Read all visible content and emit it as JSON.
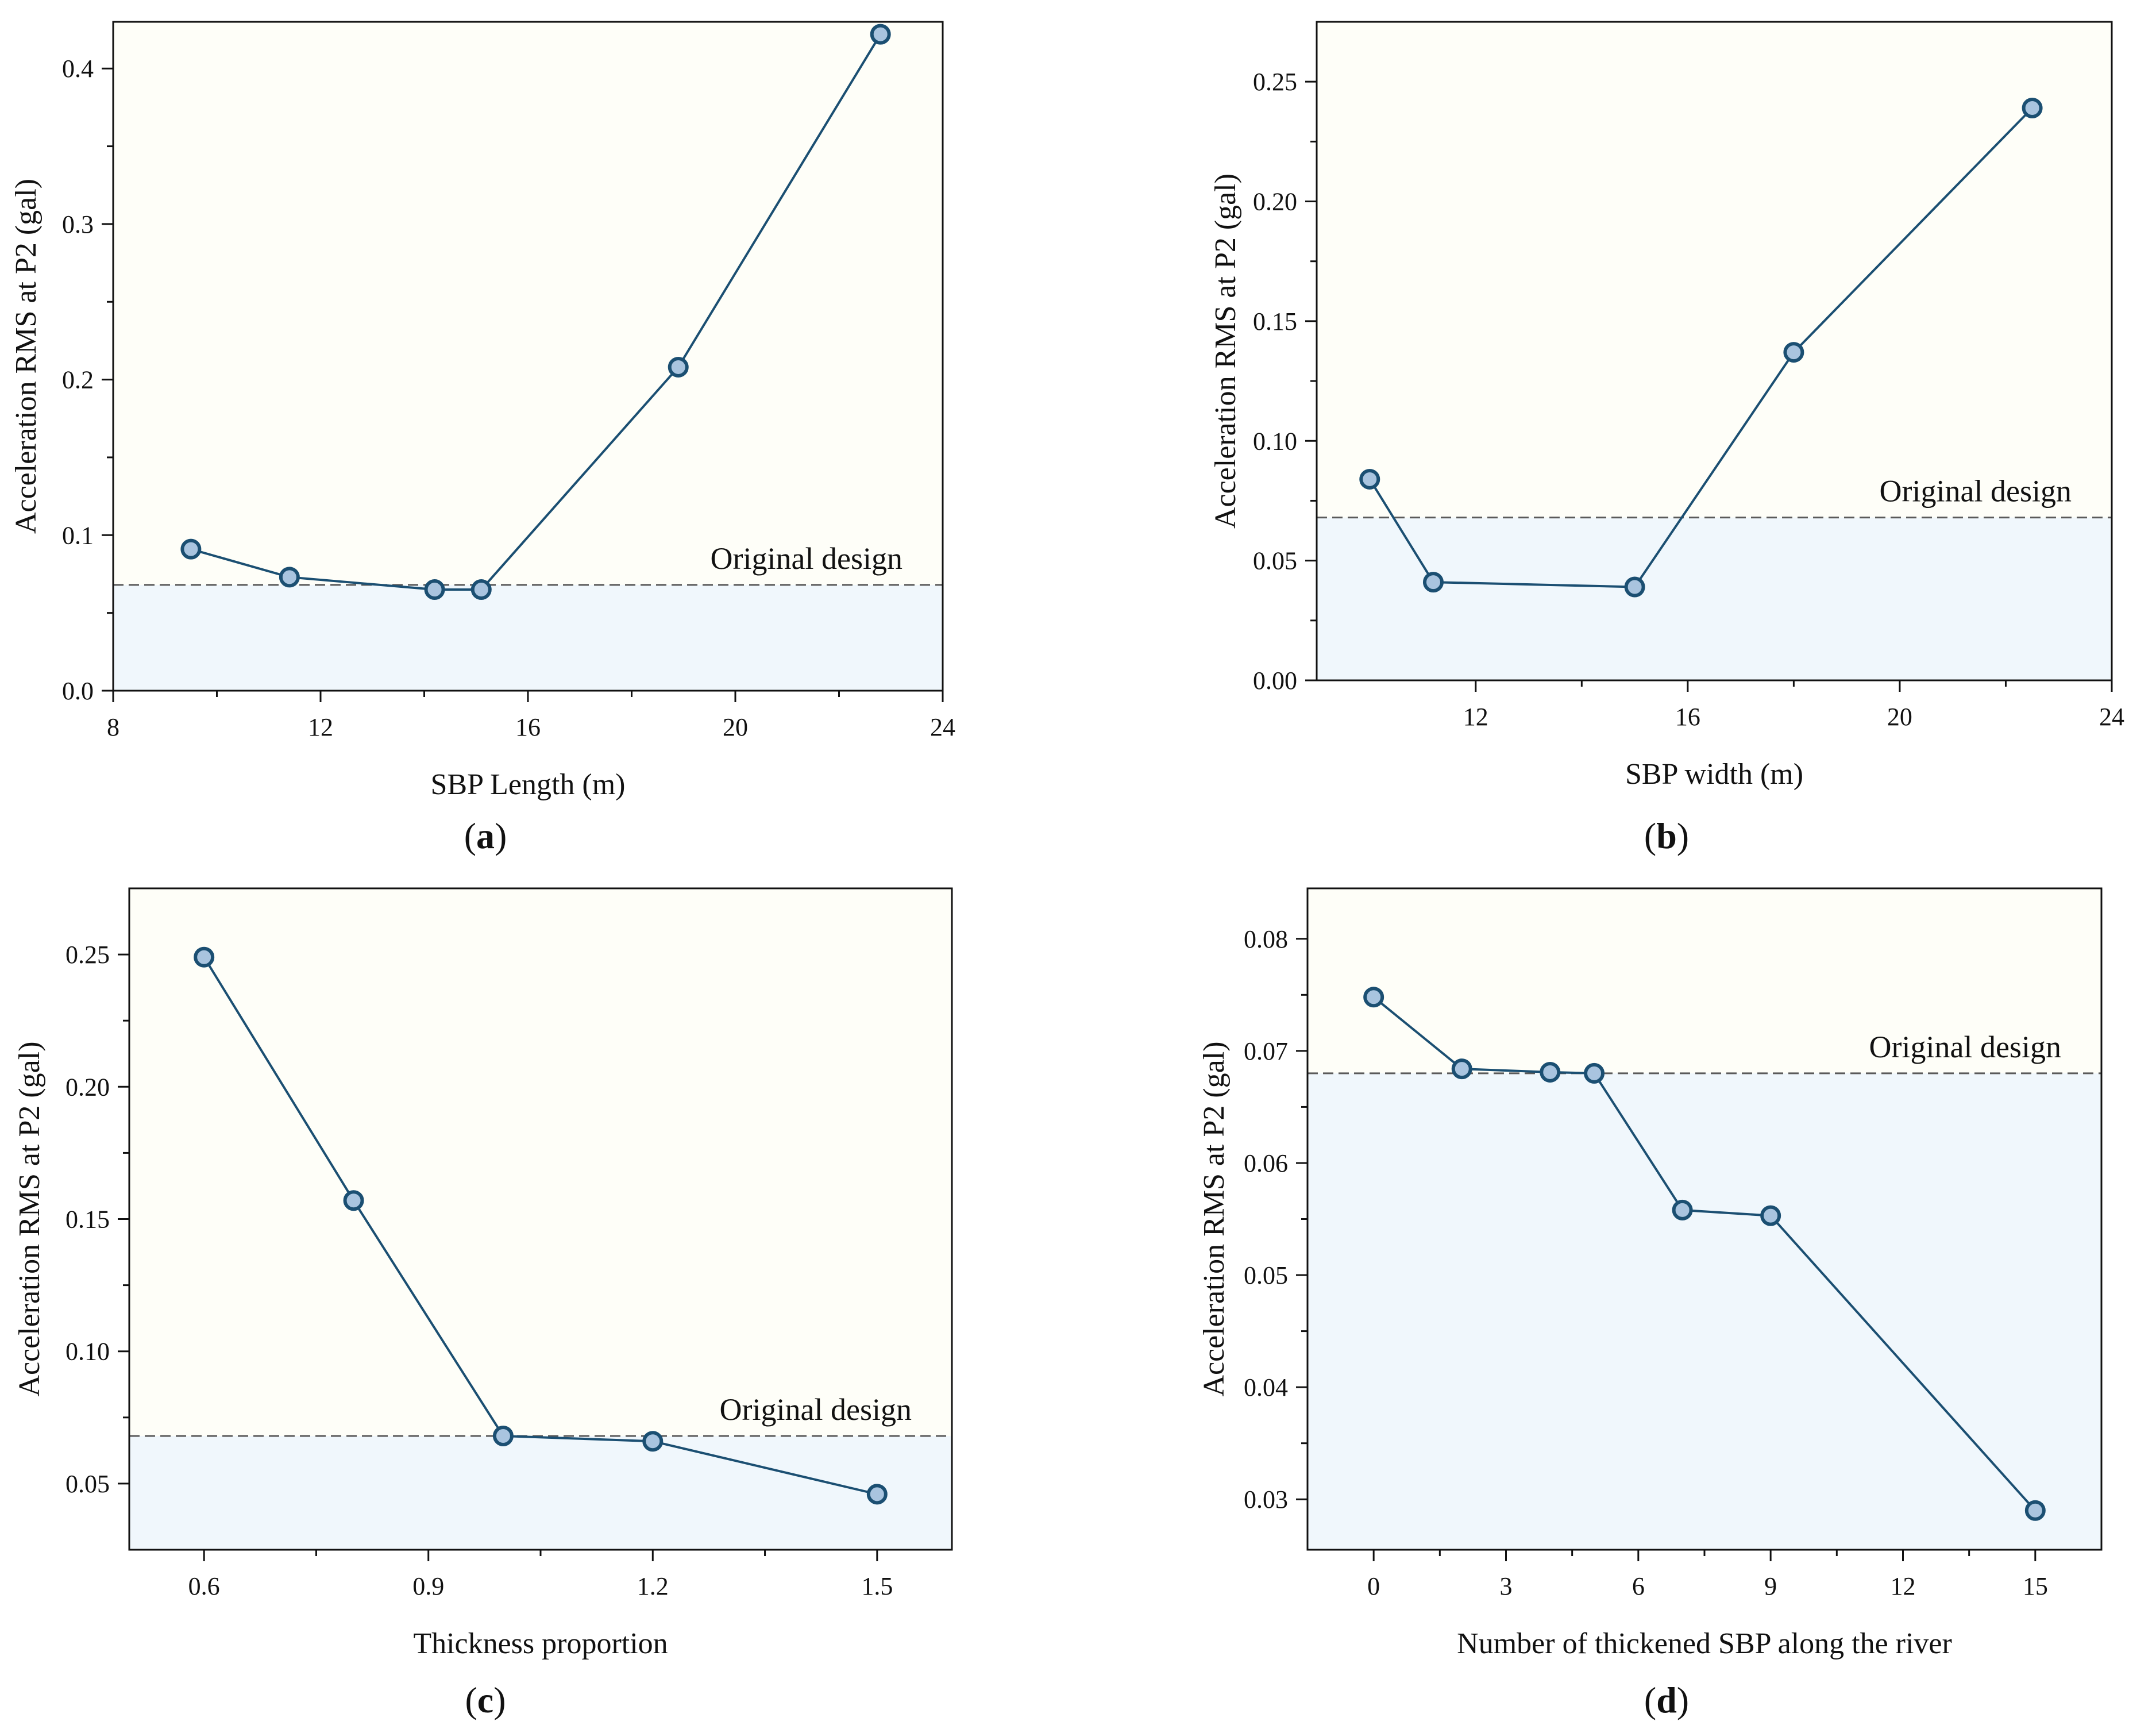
{
  "chart_data": [
    {
      "type": "line",
      "panel_label": "a",
      "xlabel": "SBP Length (m)",
      "ylabel": "Acceleration RMS at P2 (gal)",
      "xlim": [
        8,
        24
      ],
      "ylim": [
        0,
        0.43
      ],
      "xticks": [
        8,
        12,
        16,
        20,
        24
      ],
      "yticks": [
        0.0,
        0.1,
        0.2,
        0.3,
        0.4
      ],
      "ytick_labels": [
        "0.0",
        "0.1",
        "0.2",
        "0.3",
        "0.4"
      ],
      "yminor": [
        0.05,
        0.15,
        0.25,
        0.35
      ],
      "x": [
        9.5,
        11.4,
        14.2,
        15.1,
        18.9,
        22.8
      ],
      "y": [
        0.091,
        0.073,
        0.065,
        0.065,
        0.208,
        0.422
      ],
      "reference": {
        "value": 0.068,
        "label": "Original design"
      },
      "grid": false,
      "line_color": "#1b4f72",
      "marker_fill": "#a9c4df",
      "below_fill": "#f0f7fc",
      "above_fill": "#fefef8"
    },
    {
      "type": "line",
      "panel_label": "b",
      "xlabel": "SBP width (m)",
      "ylabel": "Acceleration RMS at P2 (gal)",
      "xlim": [
        9,
        24
      ],
      "ylim": [
        0,
        0.275
      ],
      "xticks": [
        12,
        16,
        20,
        24
      ],
      "yticks": [
        0.0,
        0.05,
        0.1,
        0.15,
        0.2,
        0.25
      ],
      "ytick_labels": [
        "0.00",
        "0.05",
        "0.10",
        "0.15",
        "0.20",
        "0.25"
      ],
      "yminor": [
        0.025,
        0.075,
        0.125,
        0.175,
        0.225
      ],
      "x": [
        10.0,
        11.2,
        15.0,
        18.0,
        22.5
      ],
      "y": [
        0.084,
        0.041,
        0.039,
        0.137,
        0.239
      ],
      "reference": {
        "value": 0.068,
        "label": "Original design"
      },
      "grid": false,
      "line_color": "#1b4f72",
      "marker_fill": "#a9c4df",
      "below_fill": "#f0f7fc",
      "above_fill": "#fefef8"
    },
    {
      "type": "line",
      "panel_label": "c",
      "xlabel": "Thickness proportion",
      "ylabel": "Acceleration RMS at P2 (gal)",
      "xlim": [
        0.5,
        1.6
      ],
      "ylim": [
        0.025,
        0.275
      ],
      "xticks": [
        0.6,
        0.9,
        1.2,
        1.5
      ],
      "yticks": [
        0.05,
        0.1,
        0.15,
        0.2,
        0.25
      ],
      "ytick_labels": [
        "0.05",
        "0.10",
        "0.15",
        "0.20",
        "0.25"
      ],
      "yminor": [
        0.075,
        0.125,
        0.175,
        0.225
      ],
      "x": [
        0.6,
        0.8,
        1.0,
        1.2,
        1.5
      ],
      "y": [
        0.249,
        0.157,
        0.068,
        0.066,
        0.046
      ],
      "reference": {
        "value": 0.068,
        "label": "Original design"
      },
      "grid": false,
      "line_color": "#1b4f72",
      "marker_fill": "#a9c4df",
      "below_fill": "#f0f7fc",
      "above_fill": "#fefef8"
    },
    {
      "type": "line",
      "panel_label": "d",
      "xlabel": "Number of thickened SBP along the river",
      "ylabel": "Acceleration RMS at P2 (gal)",
      "xlim": [
        -1.5,
        16.5
      ],
      "ylim": [
        0.0255,
        0.0845
      ],
      "xticks": [
        0,
        3,
        6,
        9,
        12,
        15
      ],
      "yticks": [
        0.03,
        0.04,
        0.05,
        0.06,
        0.07,
        0.08
      ],
      "ytick_labels": [
        "0.03",
        "0.04",
        "0.05",
        "0.06",
        "0.07",
        "0.08"
      ],
      "yminor": [
        0.035,
        0.045,
        0.055,
        0.065,
        0.075
      ],
      "x": [
        0,
        2,
        4,
        5,
        7,
        9,
        15
      ],
      "y": [
        0.0748,
        0.0684,
        0.0681,
        0.068,
        0.0558,
        0.0553,
        0.029
      ],
      "reference": {
        "value": 0.068,
        "label": "Original design"
      },
      "grid": false,
      "line_color": "#1b4f72",
      "marker_fill": "#a9c4df",
      "below_fill": "#f0f7fc",
      "above_fill": "#fefef8"
    }
  ]
}
